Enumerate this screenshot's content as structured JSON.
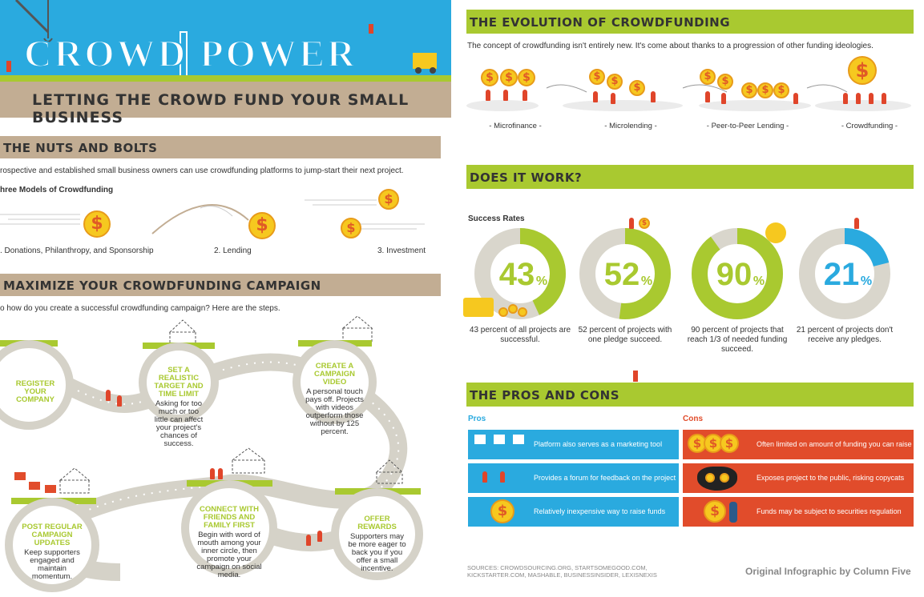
{
  "hero": {
    "title": "CROWD POWER",
    "subtitle": "LETTING THE CROWD FUND YOUR SMALL BUSINESS"
  },
  "nuts": {
    "heading": "THE NUTS AND BOLTS",
    "intro": "rospective and established small business owners can use crowdfunding platforms to jump-start their next project.",
    "models_title": "hree Models of Crowdfunding",
    "models": [
      ". Donations, Philanthropy, and Sponsorship",
      "2. Lending",
      "3. Investment"
    ]
  },
  "maximize": {
    "heading": "MAXIMIZE YOUR CROWDFUNDING CAMPAIGN",
    "intro": "o how do you create a successful crowdfunding campaign? Here are the steps.",
    "steps": [
      {
        "title": "REGISTER YOUR COMPANY",
        "body": ""
      },
      {
        "title": "SET A REALISTIC TARGET AND TIME LIMIT",
        "body": "Asking for too much or too little can affect your project's chances of success."
      },
      {
        "title": "CREATE A CAMPAIGN VIDEO",
        "body": "A personal touch pays off. Projects with videos outperform those without by 125 percent."
      },
      {
        "title": "POST REGULAR CAMPAIGN UPDATES",
        "body": "Keep supporters engaged and maintain momentum."
      },
      {
        "title": "CONNECT WITH FRIENDS AND FAMILY FIRST",
        "body": "Begin with word of mouth among your inner circle, then promote your campaign on social media."
      },
      {
        "title": "OFFER REWARDS",
        "body": "Supporters may be more eager to back you if you offer a small incentive."
      }
    ]
  },
  "evolution": {
    "heading": "THE EVOLUTION OF CROWDFUNDING",
    "intro": "The concept of crowdfunding isn't entirely new. It's come about thanks to a progression of other funding ideologies.",
    "stages": [
      "- Microfinance -",
      "- Microlending -",
      "- Peer-to-Peer Lending -",
      "- Crowdfunding -"
    ]
  },
  "works": {
    "heading": "DOES IT WORK?",
    "label": "Success Rates",
    "rates": [
      {
        "value": "43",
        "pct": "%",
        "fraction": 0.43,
        "caption": "43 percent of all projects are successful.",
        "color": "#a9c930"
      },
      {
        "value": "52",
        "pct": "%",
        "fraction": 0.52,
        "caption": "52 percent of projects with one pledge succeed.",
        "color": "#a9c930"
      },
      {
        "value": "90",
        "pct": "%",
        "fraction": 0.9,
        "caption": "90 percent of projects that reach 1/3 of needed funding succeed.",
        "color": "#a9c930"
      },
      {
        "value": "21",
        "pct": "%",
        "fraction": 0.21,
        "caption": "21 percent of projects don't receive any pledges.",
        "color": "#2aaadf"
      }
    ]
  },
  "proscons": {
    "heading": "THE PROS AND CONS",
    "pros_label": "Pros",
    "cons_label": "Cons",
    "pros": [
      "Platform also serves as a marketing tool",
      "Provides a forum for feedback on the project",
      "Relatively inexpensive way to raise funds"
    ],
    "cons": [
      "Often limited on amount of funding you can raise",
      "Exposes project to the public, risking copycats",
      "Funds may be subject to securities regulation"
    ]
  },
  "footer": {
    "sources": "SOURCES: CROWDSOURCING.ORG, STARTSOMEGOOD.COM, KICKSTARTER.COM, MASHABLE, BUSINESSINSIDER, LEXISNEXIS",
    "credit": "Original Infographic by Column Five"
  },
  "colors": {
    "green": "#a9c930",
    "blue": "#2aaadf",
    "red": "#e14c2b",
    "tan": "#c2ad93",
    "gold": "#f6c81f"
  },
  "icons": {
    "coin": "dollar-coin-icon",
    "person": "person-icon",
    "cat": "cat-icon",
    "sign": "sign-icon",
    "forklift": "forklift-icon"
  }
}
